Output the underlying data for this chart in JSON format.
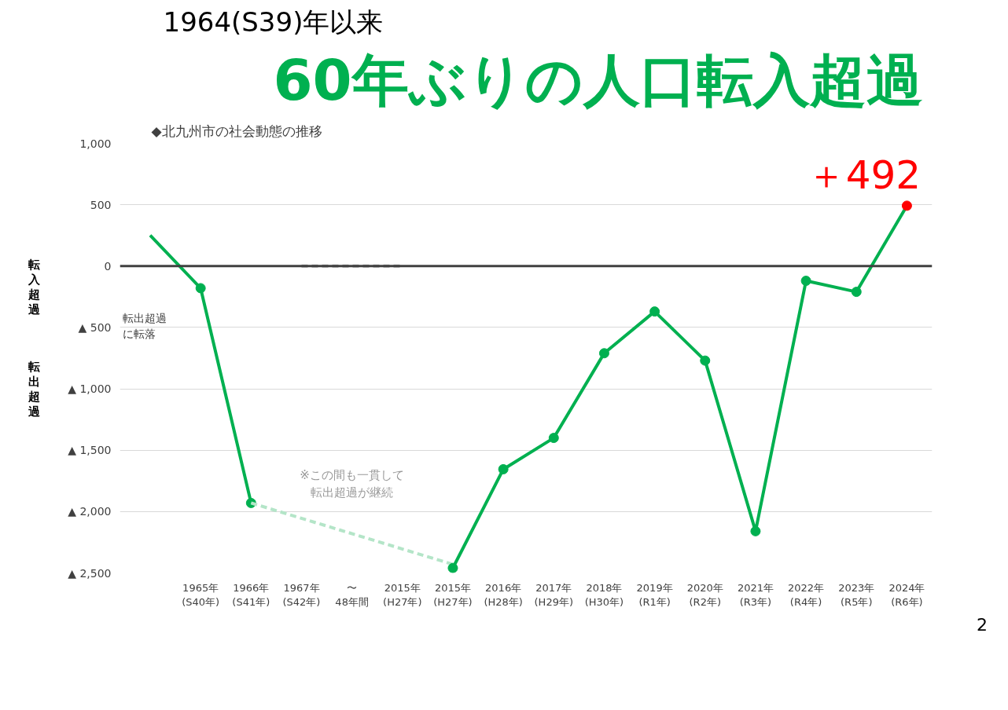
{
  "chart_data": {
    "type": "line",
    "title": "1964(S39)年以来",
    "subtitle": "60年ぶりの人口転入超過",
    "categories": [
      null,
      "1965年\n(S40年)",
      "1966年\n(S41年)",
      "1967年\n(S42年)",
      "〜\n48年間",
      "2015年\n(H27年)",
      "2015年\n(H27年)",
      "2016年\n(H28年)",
      "2017年\n(H29年)",
      "2018年\n(H30年)",
      "2019年\n(R1年)",
      "2020年\n(R2年)",
      "2021年\n(R3年)",
      "2022年\n(R4年)",
      "2023年\n(R5年)",
      "2024年\n(R6年)"
    ],
    "series": [
      {
        "color": "#00b050",
        "colors": [
          null,
          "#00b050",
          "#00b050",
          null,
          null,
          null,
          null,
          null,
          null,
          null,
          null,
          null,
          null,
          null,
          null,
          null
        ],
        "values": [
          250,
          -180,
          -1930,
          null,
          null,
          null,
          null,
          null,
          null,
          null,
          null,
          null,
          null,
          null,
          null,
          null
        ]
      },
      {
        "color": "#b4e5c8",
        "marker": "none",
        "line_style": "dashed",
        "values": [
          null,
          null,
          -1930,
          null,
          null,
          null,
          -2430,
          null,
          null,
          null,
          null,
          null,
          null,
          null,
          null,
          null
        ]
      },
      {
        "color": "#a6a6a6",
        "marker": "none",
        "line_style": "dashed",
        "values": [
          null,
          null,
          null,
          0,
          0,
          0,
          null,
          null,
          null,
          null,
          null,
          null,
          null,
          null,
          null,
          null
        ]
      },
      {
        "color": "#00b050",
        "colors": [
          "#00b050",
          "#00b050",
          "#00b050",
          "#00b050",
          "#00b050",
          "#00b050",
          "#00b050",
          "#00b050",
          "#00b050",
          "#00b050",
          "#00b050",
          "#00b050",
          "#00b050",
          "#00b050",
          "#00b050",
          "#ff0000"
        ],
        "values": [
          null,
          null,
          null,
          null,
          null,
          null,
          -2460,
          -1655,
          -1400,
          -710,
          -370,
          -770,
          -2160,
          -120,
          -210,
          492
        ],
        "value_labels": [
          null,
          null,
          null,
          null,
          null,
          null,
          null,
          null,
          null,
          null,
          null,
          null,
          null,
          null,
          null,
          "＋492"
        ]
      }
    ],
    "ylim": [
      -2500,
      1000
    ],
    "yticks": [
      {
        "value": 1000,
        "label": "1,000"
      },
      500,
      0,
      {
        "value": -500,
        "label": "▲ 500"
      },
      {
        "value": -1000,
        "label": "▲ 1,000"
      },
      {
        "value": -1500,
        "label": "▲ 1,500"
      },
      {
        "value": -2000,
        "label": "▲ 2,000"
      },
      {
        "value": -2500,
        "label": "▲ 2,500"
      }
    ],
    "grid": "y",
    "marker": "circle",
    "line_style": "solid",
    "ref_lines": [
      {
        "axis": "y",
        "value": 0,
        "color": "#404040"
      }
    ],
    "annotations": [
      "◆北九州市の社会動態の推移",
      "転入超過",
      "転出超過",
      "転出超過に転落",
      "※この間も一貫して転出超過が継続",
      "2"
    ]
  }
}
